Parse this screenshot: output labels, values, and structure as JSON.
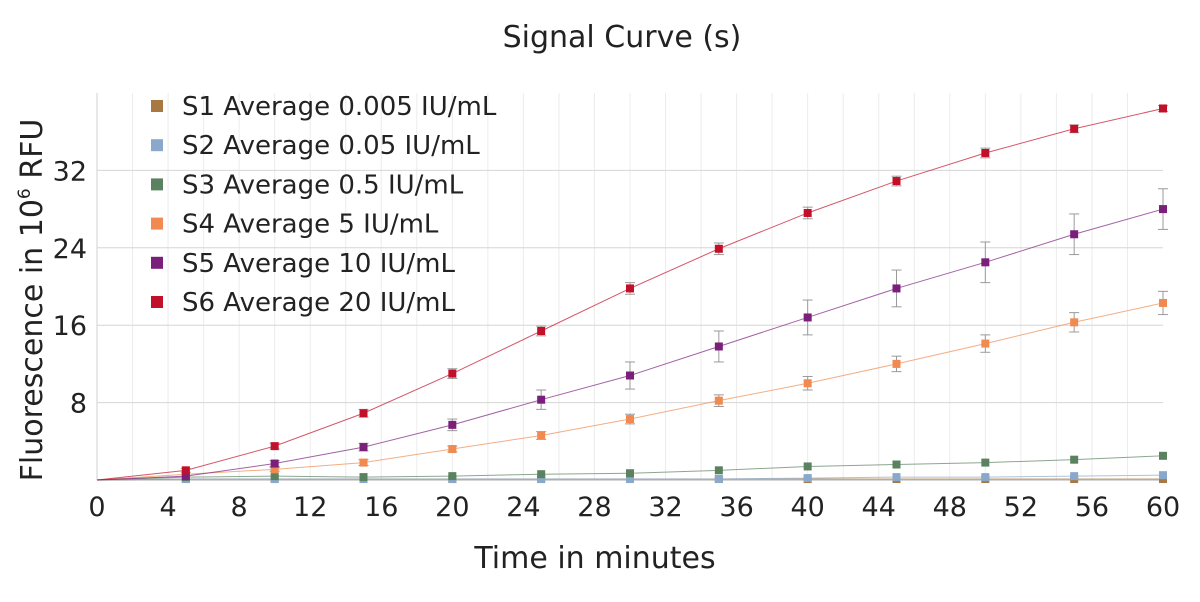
{
  "chart_data": {
    "type": "line",
    "title": "Signal Curve (s)",
    "xlabel": "Time in minutes",
    "ylabel_main": "Fluorescence in 10",
    "ylabel_sup": "6",
    "ylabel_unit": " RFU",
    "xlim": [
      0,
      60
    ],
    "ylim": [
      0,
      40
    ],
    "x_ticks": [
      0,
      4,
      8,
      12,
      16,
      20,
      24,
      28,
      32,
      36,
      40,
      44,
      48,
      52,
      56,
      60
    ],
    "y_ticks": [
      8,
      16,
      24,
      32
    ],
    "grid": "on",
    "legend_position": "top-left",
    "x": [
      5,
      10,
      15,
      20,
      25,
      30,
      35,
      40,
      45,
      50,
      55,
      60
    ],
    "series": [
      {
        "name": "S1 Average 0.005 IU/mL",
        "color": "#a87842",
        "values": [
          0.1,
          0.1,
          0.1,
          0.1,
          0.1,
          0.1,
          0.1,
          0.1,
          0.1,
          0.1,
          0.1,
          0.1
        ],
        "errors": [
          0,
          0,
          0,
          0,
          0,
          0,
          0,
          0,
          0,
          0,
          0,
          0
        ]
      },
      {
        "name": "S2 Average 0.05 IU/mL",
        "color": "#8aa8cc",
        "values": [
          0.1,
          0.1,
          0.1,
          0.1,
          0.1,
          0.1,
          0.1,
          0.2,
          0.3,
          0.3,
          0.4,
          0.5
        ],
        "errors": [
          0,
          0,
          0,
          0,
          0,
          0,
          0,
          0,
          0,
          0,
          0,
          0
        ]
      },
      {
        "name": "S3 Average 0.5 IU/mL",
        "color": "#5a8260",
        "values": [
          0.3,
          0.4,
          0.3,
          0.4,
          0.6,
          0.7,
          1.0,
          1.4,
          1.6,
          1.8,
          2.1,
          2.5
        ],
        "errors": [
          0,
          0,
          0,
          0,
          0,
          0,
          0,
          0,
          0,
          0,
          0,
          0
        ]
      },
      {
        "name": "S4 Average 5 IU/mL",
        "color": "#f08a50",
        "values": [
          0.6,
          1.1,
          1.8,
          3.2,
          4.6,
          6.3,
          8.2,
          10.0,
          12.0,
          14.1,
          16.3,
          18.3
        ],
        "errors": [
          0.1,
          0.2,
          0.3,
          0.3,
          0.4,
          0.5,
          0.6,
          0.7,
          0.8,
          0.9,
          1.0,
          1.2
        ]
      },
      {
        "name": "S5 Average 10 IU/mL",
        "color": "#7a1f7a",
        "values": [
          0.4,
          1.7,
          3.4,
          5.7,
          8.3,
          10.8,
          13.8,
          16.8,
          19.8,
          22.5,
          25.4,
          28.0
        ],
        "errors": [
          0.1,
          0.3,
          0.4,
          0.6,
          1.0,
          1.4,
          1.6,
          1.8,
          1.9,
          2.1,
          2.1,
          2.1
        ]
      },
      {
        "name": "S6 Average 20 IU/mL",
        "color": "#c2102a",
        "values": [
          1.0,
          3.5,
          6.9,
          11.0,
          15.4,
          19.8,
          23.9,
          27.6,
          30.9,
          33.8,
          36.3,
          38.4
        ],
        "errors": [
          0.2,
          0.3,
          0.4,
          0.5,
          0.5,
          0.6,
          0.6,
          0.6,
          0.5,
          0.5,
          0.4,
          0.3
        ]
      }
    ]
  }
}
